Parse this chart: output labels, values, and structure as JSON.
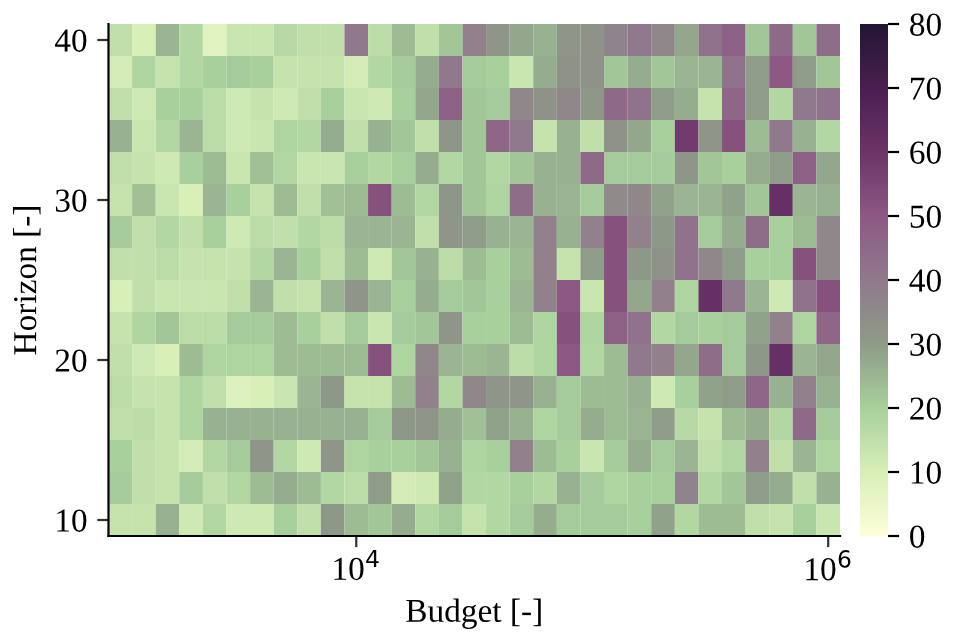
{
  "chart_data": {
    "type": "heatmap",
    "xlabel": "Budget [-]",
    "ylabel": "Horizon [-]",
    "log": "x",
    "x": [
      1000,
      1259,
      1585,
      1995,
      2512,
      3162,
      3981,
      5012,
      6310,
      7943,
      10000,
      12589,
      15849,
      19953,
      25119,
      31623,
      39811,
      50119,
      63096,
      79433,
      100000,
      125893,
      158489,
      199526,
      251189,
      316228,
      398107,
      501187,
      630957,
      794328,
      1000000
    ],
    "y": [
      40,
      38,
      36,
      34,
      32,
      30,
      28,
      26,
      24,
      22,
      20,
      18,
      16,
      14,
      12,
      10
    ],
    "cells": [
      [
        15,
        10,
        25,
        18,
        8,
        13,
        13,
        17,
        15,
        15,
        40,
        16,
        24,
        15,
        22,
        38,
        32,
        28,
        26,
        32,
        33,
        37,
        40,
        36,
        28,
        42,
        48,
        22,
        45,
        22,
        44
      ],
      [
        11,
        19,
        14,
        18,
        20,
        21,
        20,
        14,
        14,
        14,
        11,
        18,
        21,
        27,
        40,
        21,
        20,
        13,
        27,
        33,
        33,
        22,
        27,
        22,
        25,
        25,
        42,
        30,
        50,
        30,
        22
      ],
      [
        15,
        12,
        20,
        20,
        16,
        12,
        14,
        12,
        15,
        20,
        13,
        12,
        20,
        28,
        48,
        22,
        21,
        36,
        33,
        36,
        31,
        45,
        42,
        30,
        27,
        14,
        46,
        30,
        18,
        40,
        42
      ],
      [
        26,
        13,
        18,
        25,
        16,
        12,
        13,
        19,
        18,
        27,
        15,
        26,
        22,
        15,
        32,
        22,
        46,
        40,
        14,
        26,
        15,
        33,
        28,
        20,
        58,
        32,
        52,
        24,
        40,
        26,
        18
      ],
      [
        15,
        14,
        12,
        20,
        24,
        13,
        23,
        18,
        13,
        13,
        20,
        18,
        20,
        27,
        18,
        22,
        18,
        22,
        26,
        26,
        45,
        21,
        21,
        21,
        32,
        22,
        20,
        27,
        30,
        48,
        28
      ],
      [
        14,
        23,
        13,
        10,
        25,
        20,
        14,
        24,
        15,
        23,
        24,
        52,
        24,
        18,
        32,
        22,
        19,
        44,
        26,
        25,
        21,
        35,
        36,
        29,
        25,
        25,
        29,
        22,
        62,
        25,
        26
      ],
      [
        21,
        15,
        18,
        15,
        20,
        12,
        16,
        15,
        18,
        16,
        25,
        25,
        25,
        15,
        32,
        30,
        26,
        25,
        38,
        26,
        38,
        52,
        38,
        31,
        42,
        21,
        27,
        44,
        20,
        24,
        36
      ],
      [
        15,
        15,
        16,
        14,
        14,
        14,
        18,
        25,
        20,
        15,
        24,
        12,
        22,
        26,
        16,
        24,
        20,
        24,
        38,
        14,
        30,
        52,
        31,
        33,
        42,
        36,
        30,
        20,
        20,
        52,
        36
      ],
      [
        10,
        15,
        13,
        13,
        13,
        15,
        25,
        15,
        14,
        25,
        32,
        25,
        20,
        27,
        21,
        22,
        20,
        25,
        38,
        50,
        13,
        52,
        28,
        38,
        19,
        62,
        40,
        25,
        12,
        42,
        52
      ],
      [
        14,
        19,
        22,
        16,
        16,
        21,
        21,
        24,
        20,
        15,
        21,
        13,
        21,
        22,
        32,
        20,
        20,
        24,
        19,
        52,
        19,
        48,
        42,
        18,
        21,
        20,
        21,
        29,
        38,
        19,
        46
      ],
      [
        15,
        12,
        10,
        24,
        19,
        19,
        19,
        24,
        24,
        24,
        24,
        52,
        19,
        36,
        25,
        24,
        25,
        16,
        19,
        50,
        18,
        24,
        40,
        38,
        28,
        44,
        21,
        31,
        62,
        25,
        28
      ],
      [
        16,
        14,
        14,
        19,
        15,
        9,
        10,
        13,
        25,
        31,
        14,
        14,
        24,
        38,
        18,
        36,
        32,
        32,
        26,
        21,
        24,
        24,
        26,
        12,
        20,
        29,
        30,
        46,
        26,
        38,
        26
      ],
      [
        15,
        16,
        14,
        19,
        26,
        26,
        26,
        26,
        26,
        26,
        26,
        21,
        31,
        32,
        27,
        23,
        29,
        26,
        19,
        21,
        27,
        24,
        25,
        30,
        17,
        14,
        24,
        27,
        18,
        45,
        21
      ],
      [
        20,
        15,
        14,
        11,
        18,
        21,
        32,
        18,
        12,
        32,
        19,
        20,
        20,
        22,
        26,
        19,
        20,
        38,
        24,
        20,
        13,
        21,
        27,
        21,
        25,
        15,
        18,
        38,
        15,
        25,
        19
      ],
      [
        21,
        15,
        14,
        21,
        15,
        18,
        24,
        27,
        24,
        18,
        16,
        30,
        11,
        12,
        29,
        18,
        18,
        20,
        18,
        26,
        21,
        19,
        20,
        20,
        37,
        18,
        22,
        30,
        27,
        15,
        26
      ],
      [
        14,
        14,
        26,
        12,
        18,
        12,
        12,
        20,
        15,
        31,
        24,
        22,
        27,
        18,
        21,
        14,
        18,
        21,
        27,
        21,
        21,
        21,
        20,
        29,
        18,
        24,
        24,
        15,
        14,
        20,
        13
      ]
    ],
    "xlim": [
      891,
      1122018
    ],
    "ylim": [
      9,
      41
    ],
    "xticks": [
      {
        "value": 10000,
        "label": "10$^{4}$"
      },
      {
        "value": 1000000,
        "label": "10$^{6}$"
      }
    ],
    "yticks": [
      10,
      20,
      30,
      40
    ],
    "clim": [
      0,
      80
    ],
    "cticks": [
      0,
      10,
      20,
      30,
      40,
      50,
      60,
      70,
      80
    ],
    "grid": false
  }
}
